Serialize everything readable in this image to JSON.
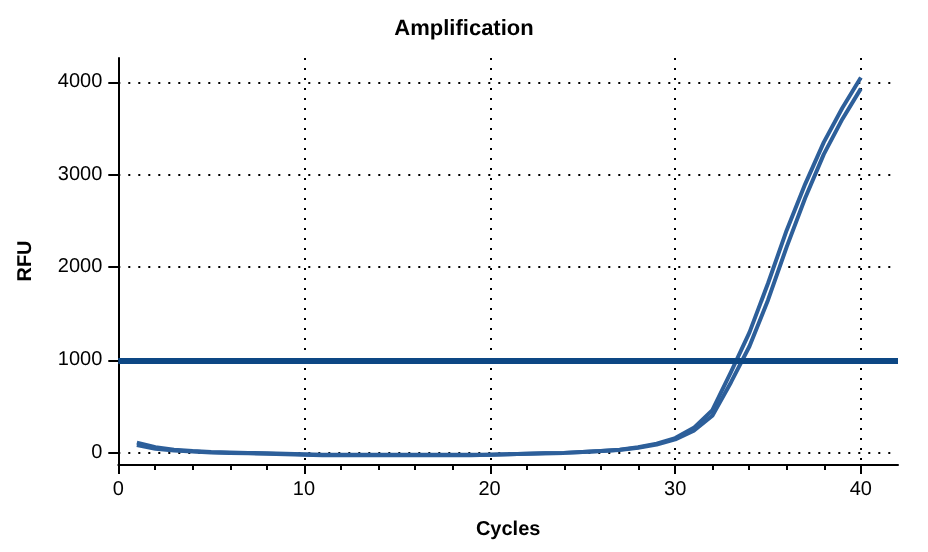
{
  "chart_data": {
    "type": "line",
    "title": "Amplification",
    "xlabel": "Cycles",
    "ylabel": "RFU",
    "xlim": [
      0,
      42
    ],
    "xticks": [
      0,
      10,
      20,
      30,
      40
    ],
    "ylim": [
      -120,
      4260
    ],
    "yticks": [
      0,
      1000,
      2000,
      3000,
      4000
    ],
    "x": [
      1,
      2,
      3,
      4,
      5,
      6,
      7,
      8,
      9,
      10,
      11,
      12,
      13,
      14,
      15,
      16,
      17,
      18,
      19,
      20,
      21,
      22,
      23,
      24,
      25,
      26,
      27,
      28,
      29,
      30,
      31,
      32,
      33,
      34,
      35,
      36,
      37,
      38,
      39,
      40
    ],
    "series": [
      {
        "color": "#2d5f9a",
        "values": [
          110,
          60,
          35,
          20,
          10,
          5,
          0,
          -5,
          -10,
          -15,
          -20,
          -20,
          -20,
          -20,
          -20,
          -20,
          -20,
          -20,
          -20,
          -20,
          -15,
          -10,
          -5,
          0,
          10,
          20,
          35,
          60,
          100,
          160,
          270,
          460,
          870,
          1300,
          1830,
          2400,
          2900,
          3350,
          3720,
          4050
        ]
      },
      {
        "color": "#2d5f9a",
        "values": [
          85,
          45,
          25,
          15,
          5,
          0,
          -5,
          -10,
          -15,
          -20,
          -25,
          -25,
          -25,
          -25,
          -25,
          -25,
          -25,
          -25,
          -25,
          -20,
          -15,
          -10,
          -5,
          0,
          10,
          20,
          30,
          55,
          90,
          145,
          240,
          400,
          760,
          1150,
          1650,
          2220,
          2750,
          3220,
          3600,
          3930
        ]
      }
    ],
    "ref_lines": [
      {
        "axis": "y",
        "value": 1000,
        "color": "#0d4784"
      }
    ],
    "grid": true,
    "marker": "none",
    "line_style": "solid"
  }
}
